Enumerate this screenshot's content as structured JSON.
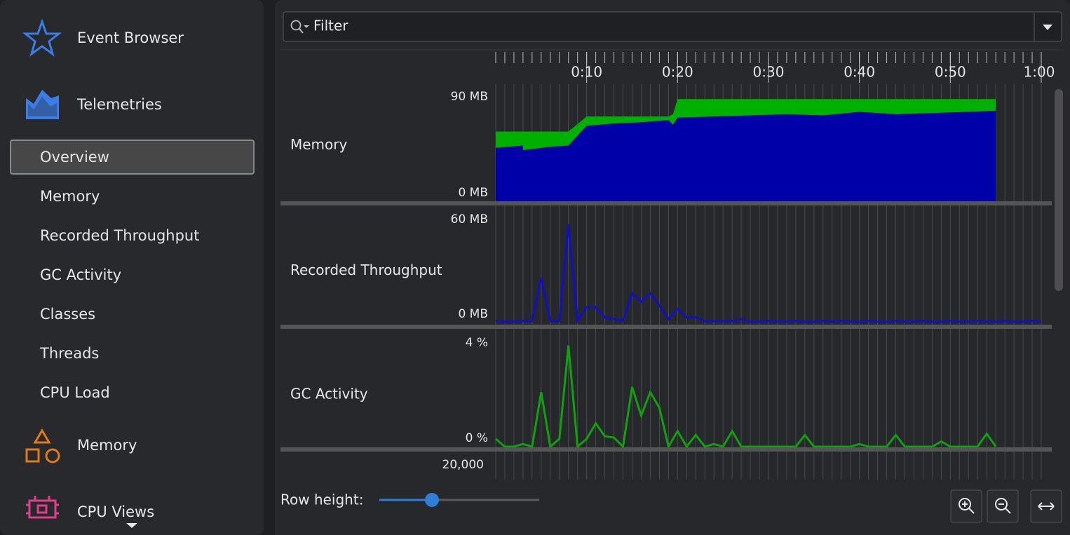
{
  "sidebar": {
    "entries": [
      {
        "label": "Event Browser",
        "level": 0
      },
      {
        "label": "Telemetries",
        "level": 0
      },
      {
        "label": "Overview",
        "level": 1
      },
      {
        "label": "Memory",
        "level": 1
      },
      {
        "label": "Recorded Throughput",
        "level": 1
      },
      {
        "label": "GC Activity",
        "level": 1
      },
      {
        "label": "Classes",
        "level": 1
      },
      {
        "label": "Threads",
        "level": 1
      },
      {
        "label": "CPU Load",
        "level": 1
      },
      {
        "label": "Memory",
        "level": 0
      },
      {
        "label": "CPU Views",
        "level": 0
      }
    ],
    "selected_index": 2
  },
  "filter": {
    "placeholder": "Filter"
  },
  "timeline": {
    "xlim": [
      0,
      60
    ],
    "xticks": [
      {
        "value": 10,
        "label": "0:10"
      },
      {
        "value": 20,
        "label": "0:20"
      },
      {
        "value": 30,
        "label": "0:30"
      },
      {
        "value": 40,
        "label": "0:40"
      },
      {
        "value": 50,
        "label": "0:50"
      },
      {
        "value": 60,
        "label": "1:00"
      }
    ],
    "minor_xticks": [
      0,
      1,
      2,
      3,
      4,
      5,
      6,
      7,
      8,
      9,
      10,
      11,
      12,
      13,
      14,
      15,
      16,
      17,
      18,
      19,
      20,
      21,
      22,
      23,
      24,
      25,
      26,
      27,
      28,
      29,
      30,
      31,
      32,
      33,
      34,
      35,
      36,
      37,
      38,
      39,
      40,
      41,
      42,
      43,
      44,
      45,
      46,
      47,
      48,
      49,
      50,
      51,
      52,
      53,
      54,
      55,
      56,
      57,
      58,
      59,
      60
    ]
  },
  "chart_data": [
    {
      "type": "area",
      "title": "Memory",
      "x": [
        0,
        3,
        3,
        6,
        8,
        10,
        13,
        16,
        19,
        19.5,
        20,
        24,
        28,
        32,
        36,
        40,
        44,
        48,
        52,
        55
      ],
      "series": [
        {
          "color": "#00b000",
          "values": [
            60,
            60,
            60,
            60,
            60,
            73,
            73,
            73,
            73,
            75,
            88,
            88,
            88,
            88,
            88,
            88,
            88,
            88,
            88,
            88
          ]
        },
        {
          "color": "#0000a8",
          "values": [
            46,
            48,
            44,
            47,
            48,
            65,
            67,
            68,
            70,
            66,
            72,
            73,
            74,
            75,
            74,
            77,
            75,
            76,
            77,
            78
          ]
        }
      ],
      "ylim": [
        0,
        90
      ],
      "yticks": [
        {
          "value": 0,
          "label": "0 MB"
        },
        {
          "value": 90,
          "label": "90 MB"
        }
      ]
    },
    {
      "type": "line",
      "title": "Recorded Throughput",
      "x": [
        0,
        1,
        2,
        3,
        4,
        5,
        6,
        7,
        8,
        9,
        10,
        11,
        12,
        13,
        14,
        15,
        16,
        17,
        18,
        19,
        20,
        21,
        22,
        23,
        24,
        25,
        26,
        27,
        28,
        29,
        30,
        31,
        32,
        33,
        34,
        35,
        36,
        37,
        38,
        39,
        40,
        41,
        42,
        43,
        44,
        45,
        46,
        47,
        48,
        49,
        50,
        51,
        52,
        53,
        54,
        55,
        56,
        57,
        58,
        59,
        60
      ],
      "series": [
        {
          "color": "#1010c0",
          "values": [
            1,
            0.5,
            0.5,
            1,
            1,
            26,
            1,
            1,
            57,
            1,
            9,
            9,
            3,
            2,
            1,
            17,
            12,
            17,
            10,
            2,
            8,
            3,
            3,
            1,
            1,
            1,
            1,
            2,
            0.5,
            0.5,
            1,
            0.5,
            0.5,
            1,
            0.5,
            0.5,
            1,
            0.5,
            1,
            0.5,
            0.5,
            1,
            0.5,
            0.5,
            1,
            0.5,
            0.5,
            1,
            0.5,
            0.5,
            1,
            0.5,
            0.5,
            1,
            0.5,
            0.5,
            1,
            0.5,
            0.5,
            1,
            0.5
          ]
        }
      ],
      "ylim": [
        0,
        60
      ],
      "yticks": [
        {
          "value": 0,
          "label": "0 MB"
        },
        {
          "value": 60,
          "label": "60 MB"
        }
      ]
    },
    {
      "type": "line",
      "title": "GC Activity",
      "x": [
        0,
        1,
        2,
        3,
        4,
        5,
        6,
        7,
        8,
        9,
        10,
        11,
        12,
        13,
        14,
        15,
        16,
        17,
        18,
        19,
        20,
        21,
        22,
        23,
        24,
        25,
        26,
        27,
        28,
        29,
        30,
        31,
        32,
        33,
        34,
        35,
        36,
        37,
        38,
        39,
        40,
        41,
        42,
        43,
        44,
        45,
        46,
        47,
        48,
        49,
        50,
        51,
        52,
        53,
        54,
        55
      ],
      "series": [
        {
          "color": "#10a010",
          "values": [
            0.3,
            0,
            0,
            0.1,
            0,
            2.1,
            0,
            0.3,
            3.9,
            0,
            0.3,
            0.9,
            0.4,
            0.35,
            0,
            2.3,
            1.2,
            2.1,
            1.5,
            0,
            0.6,
            0,
            0.45,
            0,
            0.1,
            0,
            0.6,
            0,
            0,
            0,
            0,
            0,
            0,
            0,
            0.45,
            0,
            0,
            0,
            0,
            0,
            0.1,
            0,
            0,
            0,
            0.45,
            0,
            0,
            0,
            0,
            0.2,
            0,
            0,
            0,
            0,
            0.5,
            0
          ]
        }
      ],
      "ylim": [
        0,
        4
      ],
      "yticks": [
        {
          "value": 0,
          "label": "0 %"
        },
        {
          "value": 4,
          "label": "4 %"
        }
      ]
    }
  ],
  "partial_row": {
    "ytick_label": "20,000"
  },
  "controls": {
    "row_height_label": "Row height:"
  }
}
